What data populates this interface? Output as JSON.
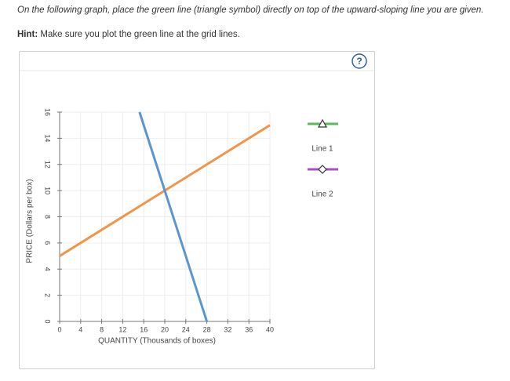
{
  "instruction": "On the following graph, place the green line (triangle symbol) directly on top of the upward-sloping line you are given.",
  "hint": {
    "label": "Hint:",
    "text": "Make sure you plot the green line at the grid lines."
  },
  "help_icon": "?",
  "chart_data": {
    "type": "line",
    "x_label": "QUANTITY (Thousands of boxes)",
    "y_label": "PRICE (Dollars per box)",
    "xlim": [
      0,
      40
    ],
    "xticks": [
      0,
      4,
      8,
      12,
      16,
      20,
      24,
      28,
      32,
      36,
      40
    ],
    "ylim": [
      0,
      16
    ],
    "yticks": [
      0,
      2,
      4,
      6,
      8,
      10,
      12,
      14,
      16
    ],
    "grid": true,
    "series": [
      {
        "color": "#f0964a",
        "x": [
          0,
          40
        ],
        "values": [
          5,
          15
        ]
      },
      {
        "color": "#5b97cf",
        "x": [
          15.2,
          28
        ],
        "values": [
          16,
          0
        ]
      }
    ],
    "tools": [
      {
        "name": "Line 1",
        "color": "#5cb85c",
        "marker": "triangle"
      },
      {
        "name": "Line 2",
        "color": "#a64fc9",
        "marker": "diamond"
      }
    ]
  }
}
